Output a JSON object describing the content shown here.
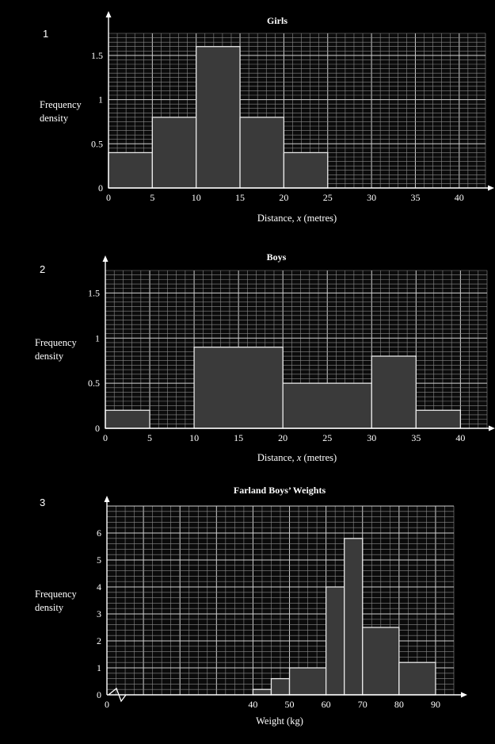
{
  "chart_data": [
    {
      "type": "bar",
      "number": "1",
      "title": "Girls",
      "xlabel": "Distance, x (metres)",
      "ylabel": [
        "Frequency",
        "density"
      ],
      "xlim": [
        0,
        43
      ],
      "ylim": [
        0,
        1.75
      ],
      "xticks": [
        0,
        5,
        10,
        15,
        20,
        25,
        30,
        35,
        40
      ],
      "yticks": [
        0,
        0.5,
        1,
        1.5
      ],
      "xtick_labels": [
        "0",
        "5",
        "10",
        "15",
        "20",
        "25",
        "30",
        "35",
        "40"
      ],
      "ytick_labels": [
        "0",
        "0.5",
        "1",
        "1.5"
      ],
      "grid": true,
      "bins": [
        {
          "x0": 0,
          "x1": 5,
          "value": 0.4
        },
        {
          "x0": 5,
          "x1": 10,
          "value": 0.8
        },
        {
          "x0": 10,
          "x1": 15,
          "value": 1.6
        },
        {
          "x0": 15,
          "x1": 20,
          "value": 0.8
        },
        {
          "x0": 20,
          "x1": 25,
          "value": 0.4
        }
      ]
    },
    {
      "type": "bar",
      "number": "2",
      "title": "Boys",
      "xlabel": "Distance, x (metres)",
      "ylabel": [
        "Frequency",
        "density"
      ],
      "xlim": [
        0,
        43
      ],
      "ylim": [
        0,
        1.75
      ],
      "xticks": [
        0,
        5,
        10,
        15,
        20,
        25,
        30,
        35,
        40
      ],
      "yticks": [
        0,
        0.5,
        1,
        1.5
      ],
      "xtick_labels": [
        "0",
        "5",
        "10",
        "15",
        "20",
        "25",
        "30",
        "35",
        "40"
      ],
      "ytick_labels": [
        "0",
        "0.5",
        "1",
        "1.5"
      ],
      "grid": true,
      "bins": [
        {
          "x0": 0,
          "x1": 5,
          "value": 0.2
        },
        {
          "x0": 10,
          "x1": 20,
          "value": 0.9
        },
        {
          "x0": 20,
          "x1": 30,
          "value": 0.5
        },
        {
          "x0": 30,
          "x1": 35,
          "value": 0.8
        },
        {
          "x0": 35,
          "x1": 40,
          "value": 0.2
        }
      ]
    },
    {
      "type": "bar",
      "number": "3",
      "title": "Farland Boys’ Weights",
      "xlabel": "Weight (kg)",
      "ylabel": [
        "Frequency",
        "density"
      ],
      "xlim": [
        0,
        95
      ],
      "ylim": [
        0,
        7
      ],
      "xticks": [
        0,
        40,
        50,
        60,
        70,
        80,
        90
      ],
      "yticks": [
        0,
        1,
        2,
        3,
        4,
        5,
        6
      ],
      "xtick_labels": [
        "0",
        "40",
        "50",
        "60",
        "70",
        "80",
        "90"
      ],
      "ytick_labels": [
        "0",
        "1",
        "2",
        "3",
        "4",
        "5",
        "6"
      ],
      "axis_break": true,
      "grid": true,
      "bins": [
        {
          "x0": 40,
          "x1": 45,
          "value": 0.2
        },
        {
          "x0": 45,
          "x1": 50,
          "value": 0.6
        },
        {
          "x0": 50,
          "x1": 60,
          "value": 1.0
        },
        {
          "x0": 60,
          "x1": 65,
          "value": 4.0
        },
        {
          "x0": 65,
          "x1": 70,
          "value": 5.8
        },
        {
          "x0": 70,
          "x1": 80,
          "value": 2.5
        },
        {
          "x0": 80,
          "x1": 90,
          "value": 1.2
        }
      ]
    }
  ]
}
